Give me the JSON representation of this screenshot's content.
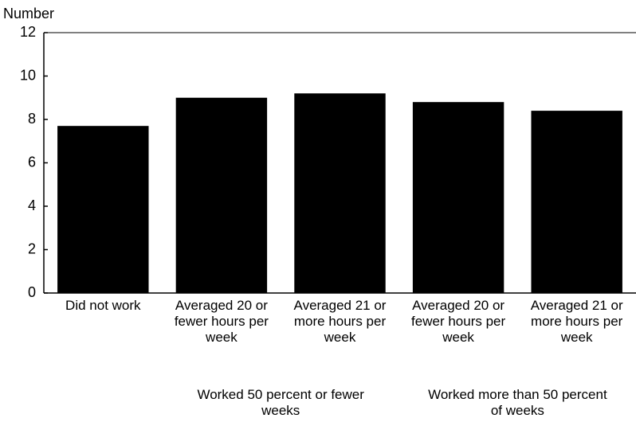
{
  "chart_data": {
    "type": "bar",
    "y_label": "Number",
    "categories": [
      "Did not work",
      "Averaged 20 or fewer hours per week",
      "Averaged 21 or more hours per week",
      "Averaged 20 or fewer hours per week",
      "Averaged 21 or more hours per week"
    ],
    "values": [
      7.7,
      9.0,
      9.2,
      8.8,
      8.4
    ],
    "color": "#000000",
    "ylim": [
      0,
      12
    ],
    "yticks": [
      0,
      2,
      4,
      6,
      8,
      10,
      12
    ],
    "group_labels": [
      "Worked 50 percent or fewer weeks",
      "Worked more than 50 percent of weeks"
    ],
    "grid": false
  }
}
